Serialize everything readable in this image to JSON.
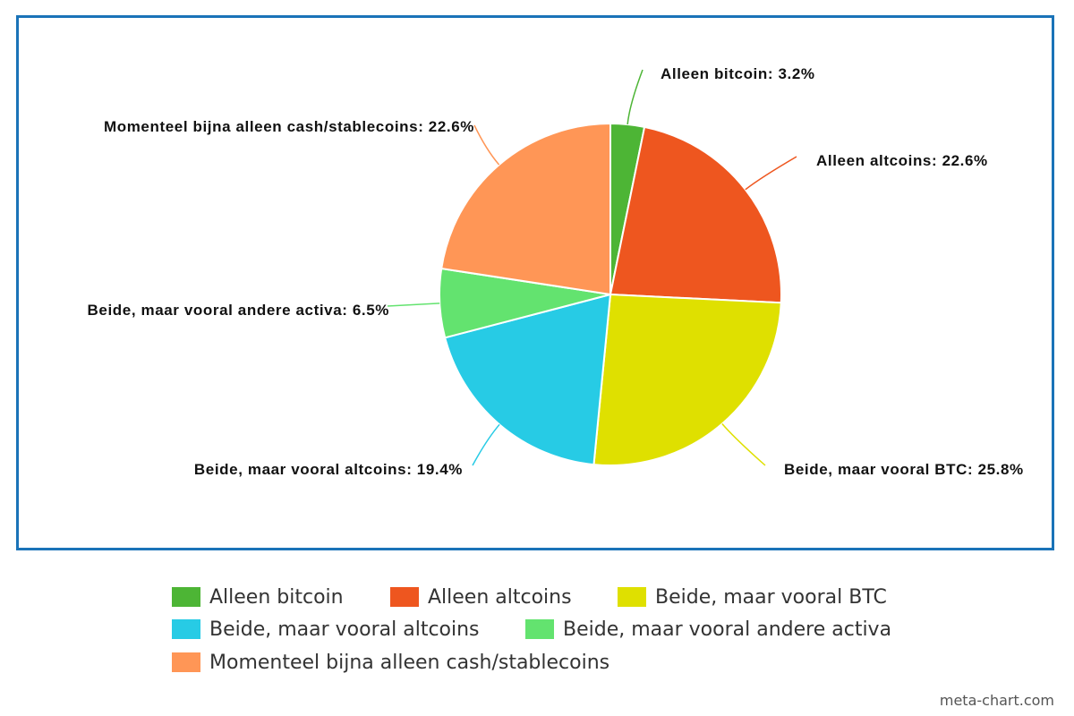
{
  "chart_data": {
    "type": "pie",
    "title": "",
    "slices": [
      {
        "label": "Alleen bitcoin",
        "value": 3.2,
        "color": "#4db535"
      },
      {
        "label": "Alleen altcoins",
        "value": 22.6,
        "color": "#ee561f"
      },
      {
        "label": "Beide, maar vooral BTC",
        "value": 25.8,
        "color": "#dfe000"
      },
      {
        "label": "Beide, maar vooral altcoins",
        "value": 19.4,
        "color": "#27cbe5"
      },
      {
        "label": "Beide, maar vooral andere activa",
        "value": 6.5,
        "color": "#63e36f"
      },
      {
        "label": "Momenteel bijna alleen cash/stablecoins",
        "value": 22.6,
        "color": "#ff9656"
      }
    ],
    "data_labels": [
      "Alleen bitcoin: 3.2%",
      "Alleen altcoins: 22.6%",
      "Beide, maar vooral BTC: 25.8%",
      "Beide, maar vooral altcoins: 19.4%",
      "Beide, maar vooral andere activa: 6.5%",
      "Momenteel bijna alleen cash/stablecoins: 22.6%"
    ],
    "legend_placement": "bottom"
  },
  "watermark": "meta-chart.com"
}
